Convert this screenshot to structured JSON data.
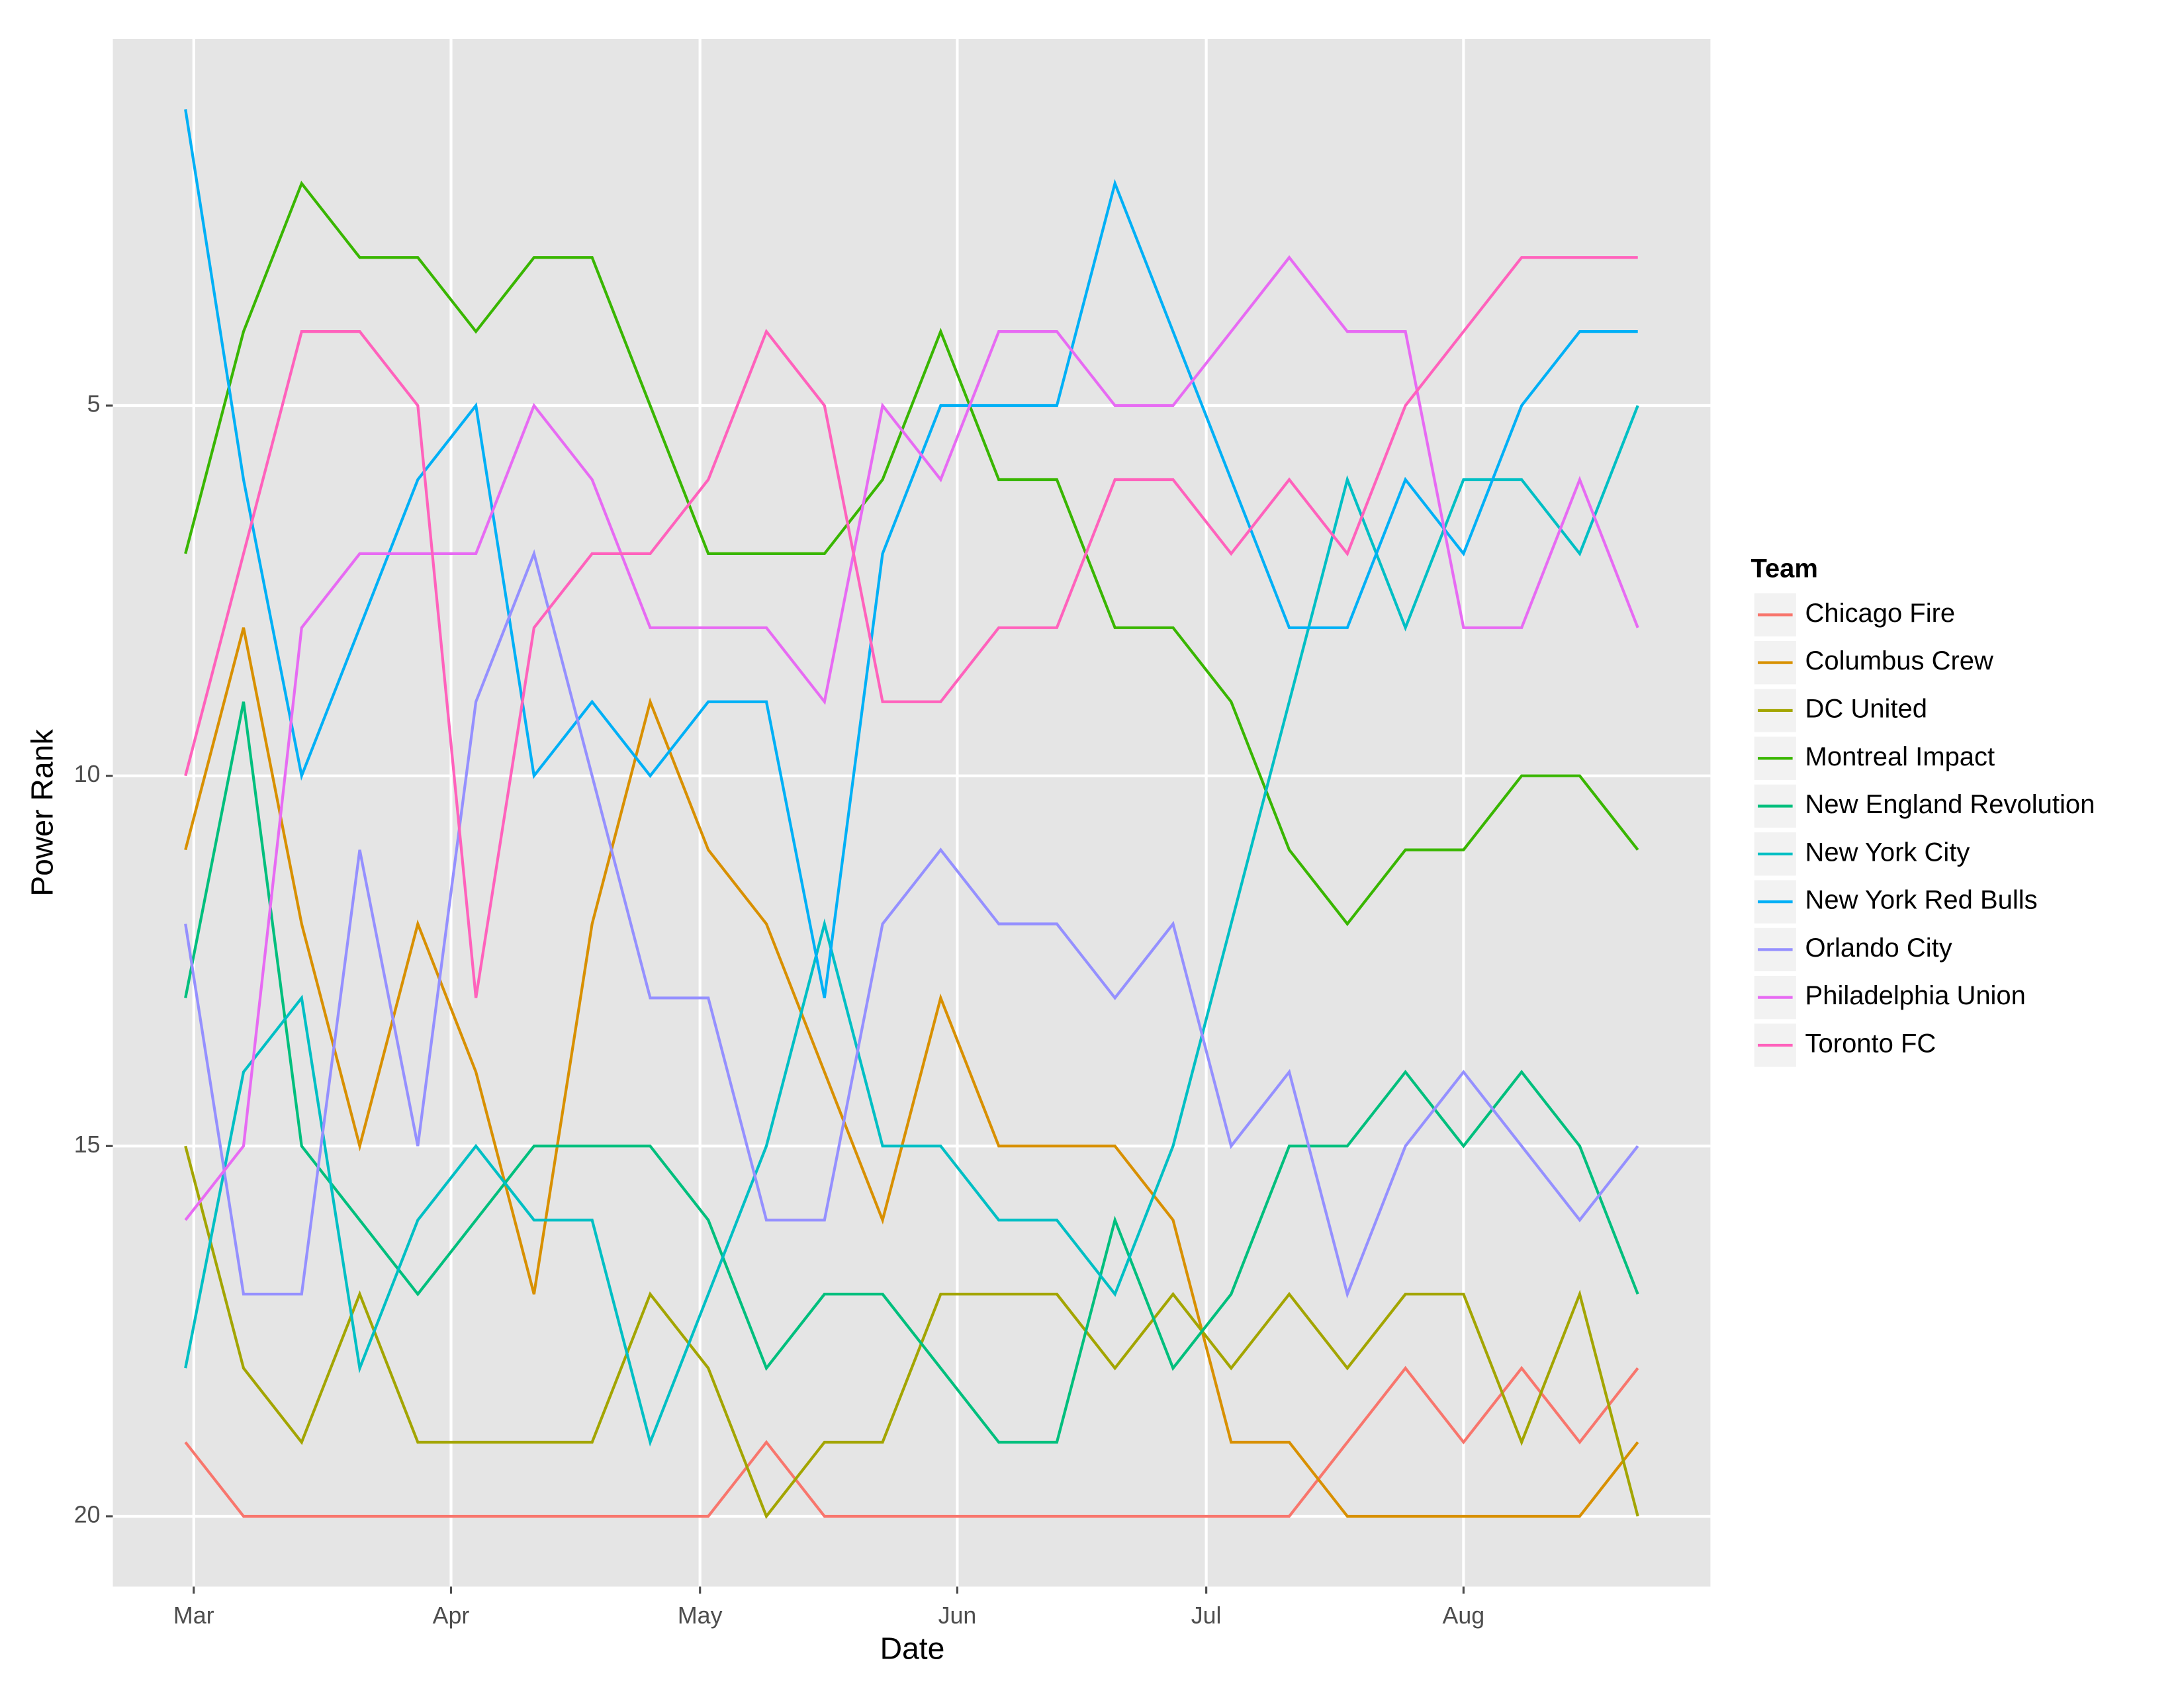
{
  "chart_data": {
    "type": "line",
    "x_label": "Date",
    "y_label": "Power Rank",
    "legend_title": "Team",
    "legend_position": "right",
    "grid": true,
    "x": [
      -1,
      6,
      13,
      20,
      27,
      34,
      41,
      48,
      55,
      62,
      69,
      76,
      83,
      90,
      97,
      104,
      111,
      118,
      125,
      132,
      139,
      146,
      153,
      160,
      167,
      174
    ],
    "xlim": [
      -9.75,
      182.75
    ],
    "xticks": [
      {
        "value": 0,
        "label": "Mar"
      },
      {
        "value": 31,
        "label": "Apr"
      },
      {
        "value": 61,
        "label": "May"
      },
      {
        "value": 92,
        "label": "Jun"
      },
      {
        "value": 122,
        "label": "Jul"
      },
      {
        "value": 153,
        "label": "Aug"
      }
    ],
    "ylim": [
      20.95,
      0.05
    ],
    "yticks": [
      5,
      10,
      15,
      20
    ],
    "series": [
      {
        "name": "Chicago Fire",
        "color": "#F8766D",
        "values": [
          19,
          20,
          20,
          20,
          20,
          20,
          20,
          20,
          20,
          20,
          19,
          20,
          20,
          20,
          20,
          20,
          20,
          20,
          20,
          20,
          19,
          18,
          19,
          18,
          19,
          18
        ]
      },
      {
        "name": "Columbus Crew",
        "color": "#D89000",
        "values": [
          11,
          8,
          12,
          15,
          12,
          14,
          17,
          12,
          9,
          11,
          12,
          14,
          16,
          13,
          15,
          15,
          15,
          16,
          19,
          19,
          20,
          20,
          20,
          20,
          20,
          19
        ]
      },
      {
        "name": "DC United",
        "color": "#A3A500",
        "values": [
          15,
          18,
          19,
          17,
          19,
          19,
          19,
          19,
          17,
          18,
          20,
          19,
          19,
          17,
          17,
          17,
          18,
          17,
          18,
          17,
          18,
          17,
          17,
          19,
          17,
          20
        ]
      },
      {
        "name": "Montreal Impact",
        "color": "#39B600",
        "values": [
          7,
          4,
          2,
          3,
          3,
          4,
          3,
          3,
          5,
          7,
          7,
          7,
          6,
          4,
          6,
          6,
          8,
          8,
          9,
          11,
          12,
          11,
          11,
          10,
          10,
          11
        ]
      },
      {
        "name": "New England Revolution",
        "color": "#00BF7D",
        "values": [
          13,
          9,
          15,
          16,
          17,
          16,
          15,
          15,
          15,
          16,
          18,
          17,
          17,
          18,
          19,
          19,
          16,
          18,
          17,
          15,
          15,
          14,
          15,
          14,
          15,
          17
        ]
      },
      {
        "name": "New York City",
        "color": "#00BFC4",
        "values": [
          18,
          14,
          13,
          18,
          16,
          15,
          16,
          16,
          19,
          17,
          15,
          12,
          15,
          15,
          16,
          16,
          17,
          15,
          12,
          9,
          6,
          8,
          6,
          6,
          7,
          5
        ]
      },
      {
        "name": "New York Red Bulls",
        "color": "#00B0F6",
        "values": [
          1,
          6,
          10,
          8,
          6,
          5,
          10,
          9,
          10,
          9,
          9,
          13,
          7,
          5,
          5,
          5,
          2,
          4,
          6,
          8,
          8,
          6,
          7,
          5,
          4,
          4
        ]
      },
      {
        "name": "Orlando City",
        "color": "#9590FF",
        "values": [
          12,
          17,
          17,
          11,
          15,
          9,
          7,
          10,
          13,
          13,
          16,
          16,
          12,
          11,
          12,
          12,
          13,
          12,
          15,
          14,
          17,
          15,
          14,
          15,
          16,
          15
        ]
      },
      {
        "name": "Philadelphia Union",
        "color": "#E76BF3",
        "values": [
          16,
          15,
          8,
          7,
          7,
          7,
          5,
          6,
          8,
          8,
          8,
          9,
          5,
          6,
          4,
          4,
          5,
          5,
          4,
          3,
          4,
          4,
          8,
          8,
          6,
          8
        ]
      },
      {
        "name": "Toronto FC",
        "color": "#FF62BC",
        "values": [
          10,
          7,
          4,
          4,
          5,
          13,
          8,
          7,
          7,
          6,
          4,
          5,
          9,
          9,
          8,
          8,
          6,
          6,
          7,
          6,
          7,
          5,
          4,
          3,
          3,
          3
        ]
      }
    ]
  }
}
